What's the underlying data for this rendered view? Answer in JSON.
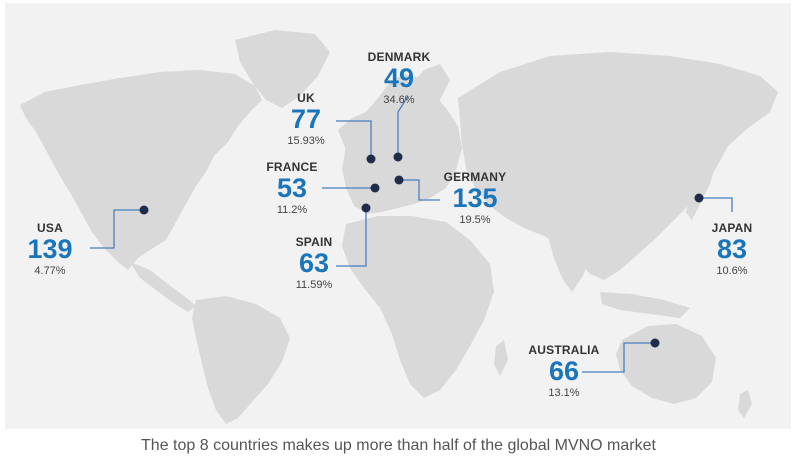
{
  "caption": "The top 8 countries makes up more than half of the global MVNO market",
  "colors": {
    "accent": "#1a75bb",
    "land": "#d9d9d9",
    "marker": "#1f2d4a",
    "connector": "#4a7fbf"
  },
  "countries": [
    {
      "id": "denmark",
      "name": "DENMARK",
      "mvnos": "49",
      "share": "34.6%"
    },
    {
      "id": "uk",
      "name": "UK",
      "mvnos": "77",
      "share": "15.93%"
    },
    {
      "id": "france",
      "name": "FRANCE",
      "mvnos": "53",
      "share": "11.2%"
    },
    {
      "id": "germany",
      "name": "GERMANY",
      "mvnos": "135",
      "share": "19.5%"
    },
    {
      "id": "usa",
      "name": "USA",
      "mvnos": "139",
      "share": "4.77%"
    },
    {
      "id": "spain",
      "name": "SPAIN",
      "mvnos": "63",
      "share": "11.59%"
    },
    {
      "id": "japan",
      "name": "JAPAN",
      "mvnos": "83",
      "share": "10.6%"
    },
    {
      "id": "australia",
      "name": "AUSTRALIA",
      "mvnos": "66",
      "share": "13.1%"
    }
  ]
}
